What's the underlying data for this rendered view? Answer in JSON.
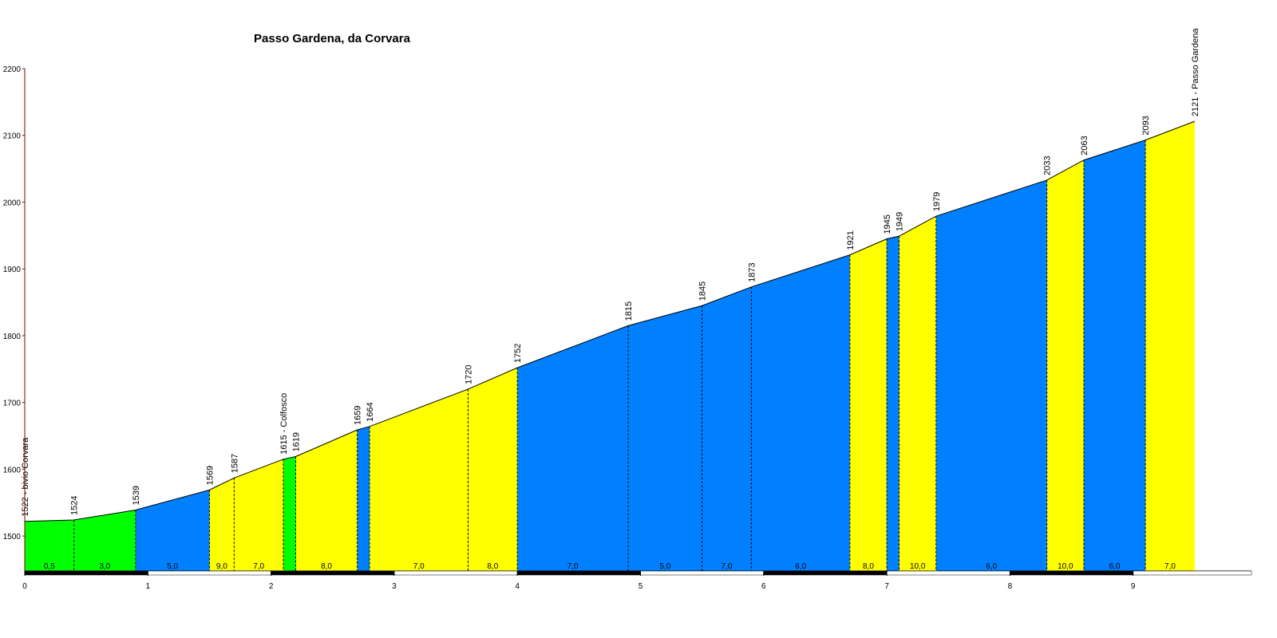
{
  "chart_data": {
    "type": "profile",
    "title": "Passo Gardena, da Corvara",
    "x": [
      0,
      0.4,
      0.9,
      1.5,
      1.7,
      2.1,
      2.2,
      2.7,
      2.8,
      3.6,
      4.0,
      4.9,
      5.5,
      5.9,
      6.7,
      7.0,
      7.1,
      7.4,
      8.3,
      8.6,
      9.1,
      9.5
    ],
    "values": [
      1522,
      1524,
      1539,
      1569,
      1587,
      1615,
      1619,
      1659,
      1664,
      1720,
      1752,
      1815,
      1845,
      1873,
      1921,
      1945,
      1949,
      1979,
      2033,
      2063,
      2093,
      2121
    ],
    "value_labels": [
      "1522 - bivio Corvara",
      "1524",
      "1539",
      "1569",
      "1587",
      "1615 - Colfosco",
      "1619",
      "1659",
      "1664",
      "1720",
      "1752",
      "1815",
      "1845",
      "1873",
      "1921",
      "1945",
      "1949",
      "1979",
      "2033",
      "2063",
      "2093",
      "2121 - Passo Gardena"
    ],
    "segments": [
      {
        "color": "#00ff00",
        "label": "0,5"
      },
      {
        "color": "#00ff00",
        "label": "3,0"
      },
      {
        "color": "#0080ff",
        "label": "5,0"
      },
      {
        "color": "#ffff00",
        "label": "9,0"
      },
      {
        "color": "#ffff00",
        "label": "7,0"
      },
      {
        "color": "#00ff00",
        "label": null
      },
      {
        "color": "#ffff00",
        "label": "8,0"
      },
      {
        "color": "#0080ff",
        "label": null
      },
      {
        "color": "#ffff00",
        "label": "7,0"
      },
      {
        "color": "#ffff00",
        "label": "8,0"
      },
      {
        "color": "#0080ff",
        "label": "7,0"
      },
      {
        "color": "#0080ff",
        "label": "5,0"
      },
      {
        "color": "#0080ff",
        "label": "7,0"
      },
      {
        "color": "#0080ff",
        "label": "6,0"
      },
      {
        "color": "#ffff00",
        "label": "8,0"
      },
      {
        "color": "#0080ff",
        "label": null
      },
      {
        "color": "#ffff00",
        "label": "10,0"
      },
      {
        "color": "#0080ff",
        "label": "6,0"
      },
      {
        "color": "#ffff00",
        "label": "10,0"
      },
      {
        "color": "#0080ff",
        "label": "6,0"
      },
      {
        "color": "#ffff00",
        "label": "7,0"
      }
    ],
    "xlim": [
      0,
      10
    ],
    "xticks": [
      0,
      1,
      2,
      3,
      4,
      5,
      6,
      7,
      8,
      9
    ],
    "ylim": [
      1450,
      2200
    ],
    "yticks": [
      1500,
      1600,
      1700,
      1800,
      1900,
      2000,
      2100,
      2200
    ]
  }
}
